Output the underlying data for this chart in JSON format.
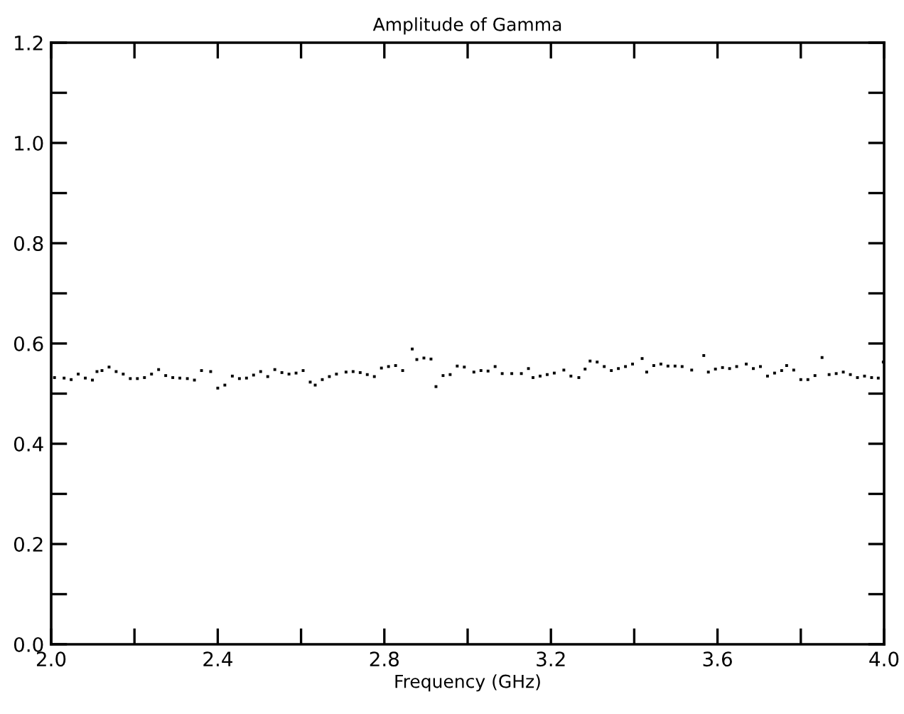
{
  "chart_data": {
    "type": "scatter",
    "title": "Amplitude of Gamma",
    "xlabel": "Frequency (GHz)",
    "marker": "square",
    "grid": false,
    "xlim": [
      2.0,
      4.0
    ],
    "ylim": [
      0.0,
      1.2
    ],
    "xticks": [
      {
        "value": 2.0,
        "label": "2.0"
      },
      {
        "value": 2.2,
        "label": null
      },
      {
        "value": 2.4,
        "label": "2.4"
      },
      {
        "value": 2.6,
        "label": null
      },
      {
        "value": 2.8,
        "label": "2.8"
      },
      {
        "value": 3.0,
        "label": null
      },
      {
        "value": 3.2,
        "label": "3.2"
      },
      {
        "value": 3.4,
        "label": null
      },
      {
        "value": 3.6,
        "label": "3.6"
      },
      {
        "value": 3.8,
        "label": null
      },
      {
        "value": 4.0,
        "label": "4.0"
      }
    ],
    "yticks": [
      {
        "value": 0.0,
        "label": "0.0"
      },
      {
        "value": 0.1,
        "label": null
      },
      {
        "value": 0.2,
        "label": "0.2"
      },
      {
        "value": 0.3,
        "label": null
      },
      {
        "value": 0.4,
        "label": "0.4"
      },
      {
        "value": 0.5,
        "label": null
      },
      {
        "value": 0.6,
        "label": "0.6"
      },
      {
        "value": 0.7,
        "label": null
      },
      {
        "value": 0.8,
        "label": "0.8"
      },
      {
        "value": 0.9,
        "label": null
      },
      {
        "value": 1.0,
        "label": "1.0"
      },
      {
        "value": 1.1,
        "label": null
      },
      {
        "value": 1.2,
        "label": "1.2"
      }
    ],
    "series": [
      {
        "color": "#000000",
        "x": [
          2.008,
          2.031,
          2.048,
          2.065,
          2.082,
          2.099,
          2.11,
          2.122,
          2.139,
          2.156,
          2.173,
          2.19,
          2.207,
          2.224,
          2.241,
          2.258,
          2.275,
          2.292,
          2.309,
          2.327,
          2.344,
          2.361,
          2.383,
          2.4,
          2.417,
          2.435,
          2.452,
          2.469,
          2.486,
          2.503,
          2.52,
          2.537,
          2.554,
          2.571,
          2.588,
          2.605,
          2.622,
          2.634,
          2.651,
          2.668,
          2.685,
          2.708,
          2.725,
          2.742,
          2.759,
          2.776,
          2.793,
          2.81,
          2.827,
          2.844,
          2.867,
          2.878,
          2.895,
          2.912,
          2.924,
          2.941,
          2.958,
          2.975,
          2.992,
          3.015,
          3.032,
          3.049,
          3.066,
          3.083,
          3.106,
          3.129,
          3.146,
          3.157,
          3.174,
          3.191,
          3.208,
          3.231,
          3.248,
          3.267,
          3.282,
          3.294,
          3.311,
          3.328,
          3.345,
          3.362,
          3.379,
          3.396,
          3.419,
          3.43,
          3.447,
          3.464,
          3.481,
          3.498,
          3.515,
          3.538,
          3.567,
          3.578,
          3.595,
          3.612,
          3.629,
          3.646,
          3.669,
          3.686,
          3.703,
          3.72,
          3.737,
          3.754,
          3.766,
          3.783,
          3.8,
          3.817,
          3.834,
          3.851,
          3.868,
          3.885,
          3.902,
          3.919,
          3.936,
          3.953,
          3.97,
          3.986,
          3.998
        ],
        "values": [
          0.532,
          0.531,
          0.528,
          0.539,
          0.531,
          0.527,
          0.544,
          0.546,
          0.553,
          0.544,
          0.539,
          0.53,
          0.53,
          0.532,
          0.539,
          0.548,
          0.536,
          0.532,
          0.531,
          0.53,
          0.527,
          0.546,
          0.544,
          0.511,
          0.517,
          0.535,
          0.53,
          0.531,
          0.537,
          0.544,
          0.534,
          0.548,
          0.542,
          0.539,
          0.541,
          0.546,
          0.523,
          0.517,
          0.528,
          0.534,
          0.539,
          0.543,
          0.544,
          0.542,
          0.538,
          0.534,
          0.551,
          0.554,
          0.556,
          0.546,
          0.589,
          0.568,
          0.571,
          0.569,
          0.514,
          0.536,
          0.538,
          0.555,
          0.553,
          0.543,
          0.546,
          0.545,
          0.554,
          0.54,
          0.54,
          0.54,
          0.55,
          0.532,
          0.535,
          0.538,
          0.541,
          0.547,
          0.535,
          0.532,
          0.549,
          0.565,
          0.563,
          0.554,
          0.546,
          0.55,
          0.554,
          0.559,
          0.57,
          0.543,
          0.556,
          0.559,
          0.555,
          0.555,
          0.554,
          0.547,
          0.576,
          0.543,
          0.549,
          0.552,
          0.55,
          0.554,
          0.559,
          0.55,
          0.554,
          0.535,
          0.541,
          0.546,
          0.556,
          0.547,
          0.528,
          0.528,
          0.536,
          0.572,
          0.538,
          0.54,
          0.543,
          0.538,
          0.532,
          0.535,
          0.532,
          0.531,
          0.563
        ]
      }
    ]
  }
}
